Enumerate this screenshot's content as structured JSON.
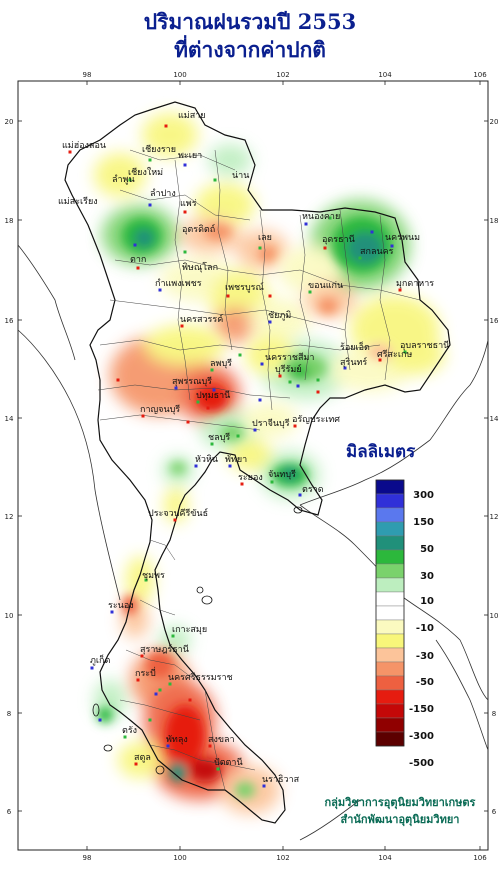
{
  "title_line1": "ปริมาณฝนรวมปี  2553",
  "title_line2": "ที่ต่างจากค่าปกติ",
  "x_ticks": [
    "98",
    "100",
    "102",
    "104",
    "106"
  ],
  "y_ticks": [
    "20",
    "18",
    "16",
    "14",
    "12",
    "10",
    "8",
    "6"
  ],
  "legend": {
    "title": "มิลลิเมตร",
    "colors": [
      "#0a0a8c",
      "#3030d8",
      "#5a78ee",
      "#2f9cb0",
      "#20907a",
      "#2cb83c",
      "#7ad26c",
      "#bdeebf",
      "#ffffff",
      "#ffffff",
      "#fbfac0",
      "#f8f67a",
      "#fcc49a",
      "#f59468",
      "#ee6040",
      "#e61c10",
      "#c40808",
      "#900000",
      "#5c0000"
    ],
    "labels": [
      "300",
      "150",
      "50",
      "30",
      "10",
      "-10",
      "-30",
      "-50",
      "-150",
      "-300",
      "-500"
    ]
  },
  "places": [
    "แม่สาย",
    "เชียงราย",
    "พะเยา",
    "แม่ฮ่องสอน",
    "เชียงใหม่",
    "ลำพูน",
    "ลำปาง",
    "แพร่",
    "น่าน",
    "แม่สะเรียง",
    "อุตรดิตถ์",
    "ตาก",
    "พิษณุโลก",
    "กำแพงเพชร",
    "เพชรบูรณ์",
    "เลย",
    "หนองคาย",
    "อุดรธานี",
    "สกลนคร",
    "นครพนม",
    "มุกดาหาร",
    "ขอนแก่น",
    "ชัยภูมิ",
    "นครสวรรค์",
    "ลพบุรี",
    "สุพรรณบุรี",
    "กาญจนบุรี",
    "ปทุมธานี",
    "นครราชสีมา",
    "บุรีรัมย์",
    "สุรินทร์",
    "ศรีสะเกษ",
    "อุบลราชธานี",
    "ร้อยเอ็ด",
    "ปราจีนบุรี",
    "อรัญประเทศ",
    "ชลบุรี",
    "พัทยา",
    "ระยอง",
    "จันทบุรี",
    "ตราด",
    "ประจวบคีรีขันธ์",
    "ชุมพร",
    "ระนอง",
    "สุราษฎร์ธานี",
    "นครศรีธรรมราช",
    "ภูเก็ต",
    "กระบี่",
    "ตรัง",
    "พัทลุง",
    "สงขลา",
    "ปัตตานี",
    "นราธิวาส",
    "สตูล",
    "เกาะสมุย",
    "หัวหิน"
  ],
  "credit_line1": "กลุ่มวิชาการอุตุนิยมวิทยาเกษตร",
  "credit_line2": "สำนักพัฒนาอุตุนิยมวิทยา"
}
